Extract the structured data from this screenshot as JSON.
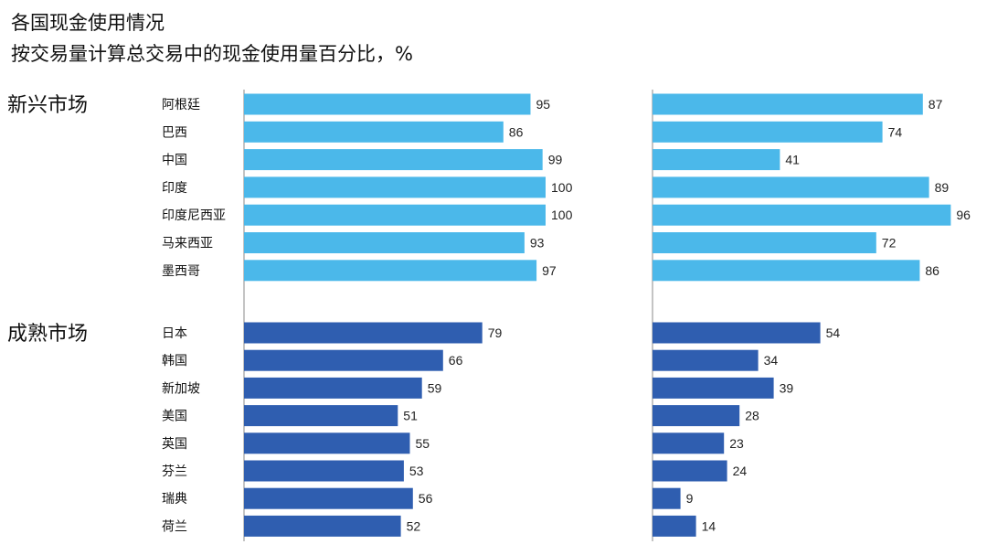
{
  "title": "各国现金使用情况",
  "subtitle": "按交易量计算总交易中的现金使用量百分比，%",
  "groups": [
    {
      "label": "新兴市场",
      "color": "#4bb8ea"
    },
    {
      "label": "成熟市场",
      "color": "#2f5eb0"
    }
  ],
  "chart_data": [
    {
      "type": "bar",
      "orientation": "horizontal",
      "categories": [
        "阿根廷",
        "巴西",
        "中国",
        "印度",
        "印度尼西亚",
        "马来西亚",
        "墨西哥",
        "日本",
        "韩国",
        "新加坡",
        "美国",
        "英国",
        "芬兰",
        "瑞典",
        "荷兰"
      ],
      "values": [
        95,
        86,
        99,
        100,
        100,
        93,
        97,
        79,
        66,
        59,
        51,
        55,
        53,
        56,
        52
      ],
      "groups": [
        "新兴市场",
        "新兴市场",
        "新兴市场",
        "新兴市场",
        "新兴市场",
        "新兴市场",
        "新兴市场",
        "成熟市场",
        "成熟市场",
        "成熟市场",
        "成熟市场",
        "成熟市场",
        "成熟市场",
        "成熟市场",
        "成熟市场"
      ],
      "xlim": [
        0,
        100
      ]
    },
    {
      "type": "bar",
      "orientation": "horizontal",
      "categories": [
        "阿根廷",
        "巴西",
        "中国",
        "印度",
        "印度尼西亚",
        "马来西亚",
        "墨西哥",
        "日本",
        "韩国",
        "新加坡",
        "美国",
        "英国",
        "芬兰",
        "瑞典",
        "荷兰"
      ],
      "values": [
        87,
        74,
        41,
        89,
        96,
        72,
        86,
        54,
        34,
        39,
        28,
        23,
        24,
        9,
        14
      ],
      "groups": [
        "新兴市场",
        "新兴市场",
        "新兴市场",
        "新兴市场",
        "新兴市场",
        "新兴市场",
        "新兴市场",
        "成熟市场",
        "成熟市场",
        "成熟市场",
        "成熟市场",
        "成熟市场",
        "成熟市场",
        "成熟市场",
        "成熟市场"
      ],
      "xlim": [
        0,
        100
      ]
    }
  ]
}
